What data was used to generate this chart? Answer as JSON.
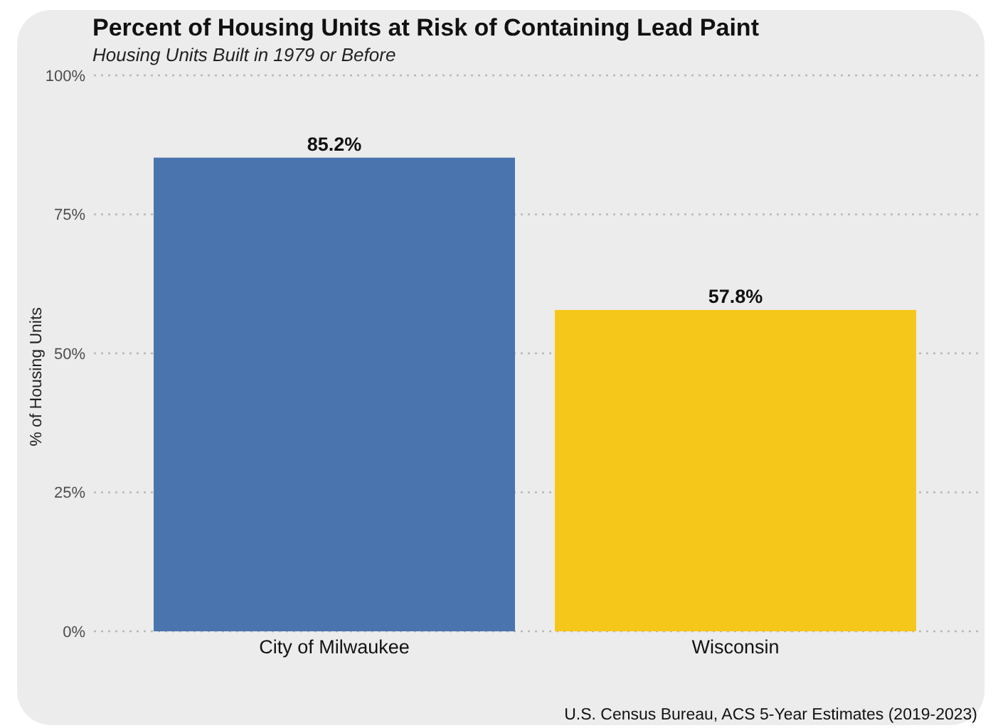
{
  "chart_data": {
    "type": "bar",
    "title": "Percent of Housing Units at Risk of Containing Lead Paint",
    "subtitle": "Housing Units Built in 1979 or Before",
    "ylabel": "% of Housing Units",
    "categories": [
      "City of Milwaukee",
      "Wisconsin"
    ],
    "values": [
      85.2,
      57.8
    ],
    "colors": [
      "#4a74ae",
      "#f5c71a"
    ],
    "value_labels": [
      "85.2%",
      "57.8%"
    ],
    "ylim": [
      0,
      100
    ],
    "yticks": [
      {
        "value": 0,
        "label": "0%"
      },
      {
        "value": 25,
        "label": "25%"
      },
      {
        "value": 50,
        "label": "50%"
      },
      {
        "value": 75,
        "label": "75%"
      },
      {
        "value": 100,
        "label": "100%"
      }
    ],
    "grid": "y",
    "annotations": [
      "U.S. Census Bureau, ACS 5-Year Estimates (2019-2023)"
    ]
  }
}
